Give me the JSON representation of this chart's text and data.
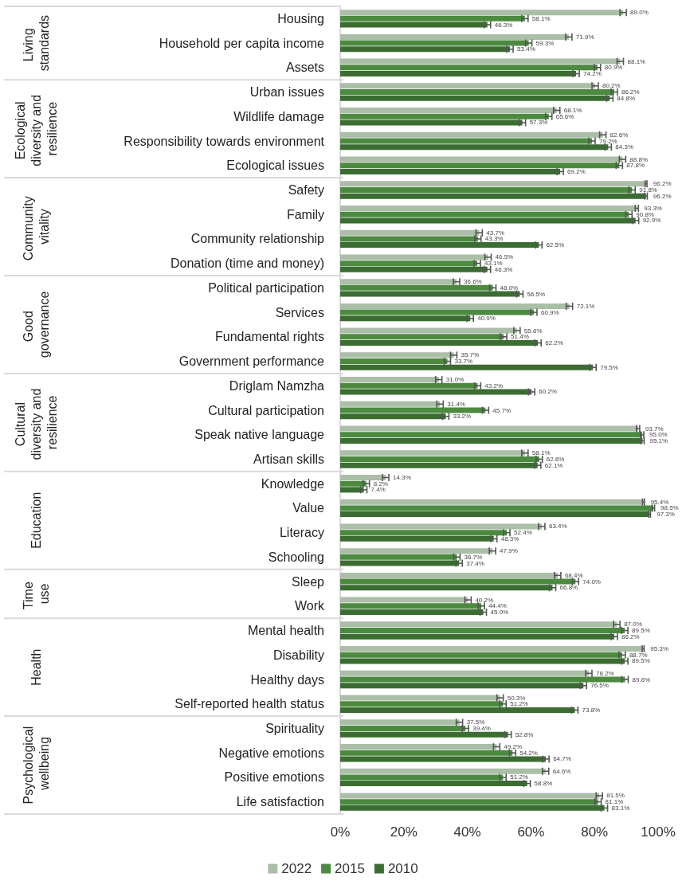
{
  "chart_data": {
    "type": "bar",
    "orientation": "horizontal",
    "legend": "bottom",
    "categories": [
      "Housing",
      "Household per capita income",
      "Assets",
      "Urban issues",
      "Wildlife damage",
      "Responsibility towards environment",
      "Ecological issues",
      "Safety",
      "Family",
      "Community relationship",
      "Donation (time and money)",
      "Political participation",
      "Services",
      "Fundamental rights",
      "Government performance",
      "Driglam Namzha",
      "Cultural participation",
      "Speak native language",
      "Artisan skills",
      "Knowledge",
      "Value",
      "Literacy",
      "Schooling",
      "Sleep",
      "Work",
      "Mental health",
      "Disability",
      "Healthy days",
      "Self-reported health status",
      "Spirituality",
      "Negative emotions",
      "Positive emotions",
      "Life satisfaction"
    ],
    "series": [
      {
        "name": "2022",
        "color": "#abbea7",
        "values": [
          89.0,
          71.9,
          88.1,
          80.2,
          68.1,
          82.6,
          88.8,
          96.2,
          93.3,
          43.7,
          46.5,
          36.6,
          72.1,
          55.6,
          35.7,
          31.0,
          31.4,
          93.7,
          58.1,
          14.3,
          95.4,
          63.4,
          47.9,
          68.4,
          40.2,
          87.0,
          95.3,
          78.2,
          50.3,
          37.5,
          49.2,
          64.6,
          81.5
        ],
        "value_labels": [
          "89.0%",
          "71.9%",
          "88.1%",
          "80.2%",
          "68.1%",
          "82.6%",
          "88.8%",
          "96.2%",
          "93.3%",
          "43.7%",
          "46.5%",
          "36.6%",
          "72.1%",
          "55.6%",
          "35.7%",
          "31.0%",
          "31.4%",
          "93.7%",
          "58.1%",
          "14.3%",
          "95.4%",
          "63.4%",
          "47.9%",
          "68.4%",
          "40.2%",
          "87.0%",
          "95.3%",
          "78.2%",
          "50.3%",
          "37.5%",
          "49.2%",
          "64.6%",
          "81.5%"
        ],
        "errors": [
          1,
          1,
          1,
          1,
          1,
          1,
          1,
          0.3,
          0.5,
          1,
          1,
          1,
          1,
          1,
          1,
          1,
          1,
          0.5,
          1,
          1,
          0.3,
          1,
          1,
          1,
          1,
          1,
          0.3,
          1,
          1,
          1,
          1,
          1,
          1
        ]
      },
      {
        "name": "2015",
        "color": "#4c8a40",
        "values": [
          58.1,
          59.3,
          80.9,
          86.2,
          65.6,
          79.2,
          87.8,
          91.8,
          90.8,
          43.3,
          43.1,
          48.0,
          60.9,
          51.4,
          33.7,
          43.2,
          45.7,
          95.0,
          62.6,
          8.2,
          98.5,
          52.4,
          36.7,
          74.0,
          44.4,
          89.5,
          88.7,
          89.6,
          51.2,
          39.4,
          54.2,
          51.2,
          81.1
        ],
        "value_labels": [
          "58.1%",
          "59.3%",
          "80.9%",
          "86.2%",
          "65.6%",
          "79.2%",
          "87.8%",
          "91.8%",
          "90.8%",
          "43.3%",
          "43.1%",
          "48.0%",
          "60.9%",
          "51.4%",
          "33.7%",
          "43.2%",
          "45.7%",
          "95.0%",
          "62.6%",
          "8.2%",
          "98.5%",
          "52.4%",
          "36.7%",
          "74.0%",
          "44.4%",
          "89.5%",
          "88.7%",
          "89.6%",
          "51.2%",
          "39.4%",
          "54.2%",
          "51.2%",
          "81.1%"
        ],
        "errors": [
          1,
          1,
          1,
          1,
          1,
          1,
          1,
          1,
          1,
          1,
          1,
          1,
          1,
          1,
          1,
          1,
          1,
          0.5,
          1,
          1,
          0.4,
          1,
          1,
          1,
          1,
          1,
          1,
          1,
          1,
          1,
          1,
          1,
          1
        ]
      },
      {
        "name": "2010",
        "color": "#3b6d32",
        "values": [
          46.3,
          53.4,
          74.2,
          84.8,
          57.3,
          84.3,
          69.2,
          96.2,
          92.9,
          62.5,
          46.3,
          56.5,
          40.9,
          62.2,
          79.5,
          60.2,
          33.2,
          95.1,
          62.1,
          7.4,
          97.3,
          48.3,
          37.4,
          66.8,
          45.0,
          86.2,
          89.5,
          76.5,
          73.8,
          52.8,
          64.7,
          58.8,
          83.1
        ],
        "value_labels": [
          "46.3%",
          "53.4%",
          "74.2%",
          "84.8%",
          "57.3%",
          "84.3%",
          "69.2%",
          "96.2%",
          "92.9%",
          "62.5%",
          "46.3%",
          "56.5%",
          "40.9%",
          "62.2%",
          "79.5%",
          "60.2%",
          "33.2%",
          "95.1%",
          "62.1%",
          "7.4%",
          "97.3%",
          "48.3%",
          "37.4%",
          "66.8%",
          "45.0%",
          "86.2%",
          "89.5%",
          "76.5%",
          "73.8%",
          "52.8%",
          "64.7%",
          "58.8%",
          "83.1%"
        ],
        "errors": [
          1,
          1,
          1,
          1,
          1,
          1,
          1,
          0.4,
          1,
          1,
          1,
          1,
          1,
          1,
          1,
          1,
          1,
          0.5,
          1,
          1,
          0.3,
          1,
          1,
          1,
          1,
          1,
          1,
          1,
          1,
          1,
          1,
          1,
          1
        ]
      }
    ],
    "xlim": [
      0,
      100
    ],
    "xticks": [
      {
        "value": 0,
        "label": "0%"
      },
      {
        "value": 20,
        "label": "20%"
      },
      {
        "value": 40,
        "label": "40%"
      },
      {
        "value": 60,
        "label": "60%"
      },
      {
        "value": 80,
        "label": "80%"
      },
      {
        "value": 100,
        "label": "100%"
      }
    ],
    "annotations": [
      "Living standards",
      "Ecological diversity and resilience",
      "Community vitality",
      "Good governance",
      "Cultural diversity and resilience",
      "Education",
      "Time use",
      "Health",
      "Psychological wellbeing"
    ]
  }
}
